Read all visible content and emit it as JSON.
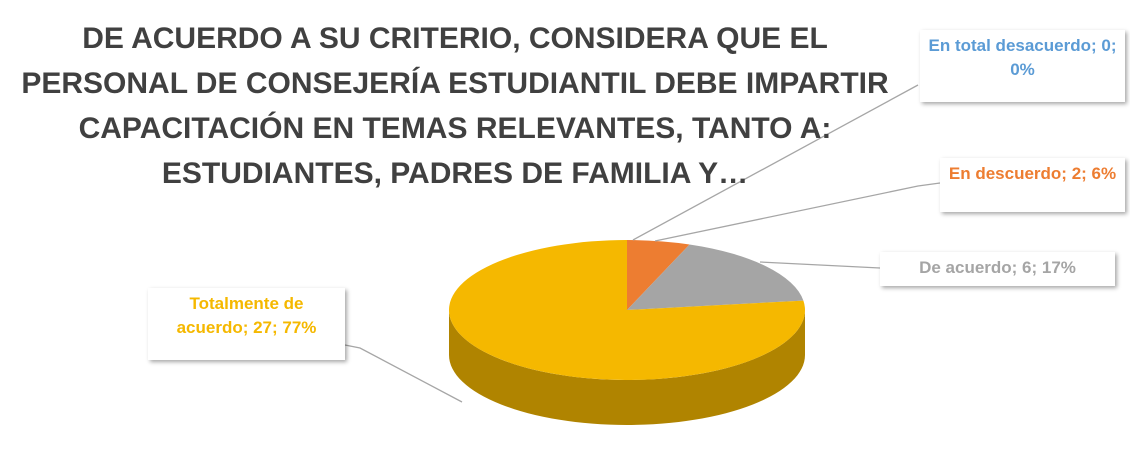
{
  "chart_data": {
    "type": "pie3d",
    "title": "DE ACUERDO A SU CRITERIO, CONSIDERA QUE EL PERSONAL DE CONSEJERÍA ESTUDIANTIL DEBE IMPARTIR CAPACITACIÓN EN TEMAS RELEVANTES, TANTO A: ESTUDIANTES, PADRES DE FAMILIA Y…",
    "values": [
      0,
      2,
      6,
      27
    ],
    "value_labels": [
      "En total desacuerdo; 0; 0%",
      "En descuerdo; 2; 6%",
      "De acuerdo; 6; 17%",
      "Totalmente de acuerdo; 27; 77%"
    ],
    "colors": [
      "#5b9bd5",
      "#ed7d31",
      "#a5a5a5",
      "#f5b800"
    ]
  }
}
